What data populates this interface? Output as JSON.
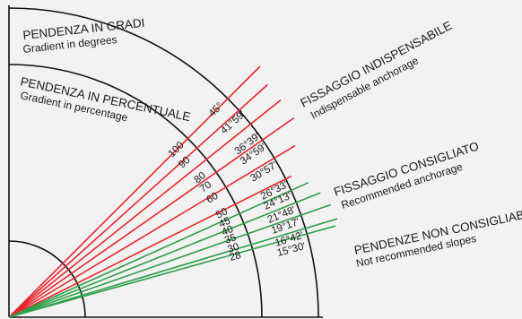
{
  "arcs": {
    "degrees_title": "PENDENZA IN GRADI",
    "degrees_subtitle": "Gradient in degrees",
    "percent_title": "PENDENZA IN PERCENTUALE",
    "percent_subtitle": "Gradient in percentage"
  },
  "zones": {
    "indispensable": {
      "title": "FISSAGGIO INDISPENSABILE",
      "subtitle": "Indispensable anchorage"
    },
    "recommended": {
      "title": "FISSAGGIO CONSIGLIATO",
      "subtitle": "Recommended anchorage"
    },
    "not_recommended": {
      "title": "PENDENZE NON CONSIGLIABILI",
      "subtitle": "Not recommended slopes"
    }
  },
  "colors": {
    "indispensable": "#e8262c",
    "recommended": "#2e9e48",
    "arc": "#111111",
    "background": "#f2f2f2"
  },
  "slopes": [
    {
      "percent": "100",
      "degrees": "45°",
      "group": "indispensable"
    },
    {
      "percent": "90",
      "degrees": "41°59'",
      "group": "indispensable"
    },
    {
      "percent": "80",
      "degrees": "36°39'",
      "group": "indispensable"
    },
    {
      "percent": "70",
      "degrees": "34°59'",
      "group": "indispensable"
    },
    {
      "percent": "60",
      "degrees": "30°57'",
      "group": "indispensable"
    },
    {
      "percent": "50",
      "degrees": "26°33'",
      "group": "indispensable"
    },
    {
      "percent": "45",
      "degrees": "24°13'",
      "group": "recommended"
    },
    {
      "percent": "40",
      "degrees": "21°48'",
      "group": "recommended"
    },
    {
      "percent": "35",
      "degrees": "19°17'",
      "group": "recommended"
    },
    {
      "percent": "30",
      "degrees": "16°42'",
      "group": "recommended"
    },
    {
      "percent": "28",
      "degrees": "15°30'",
      "group": "recommended"
    }
  ]
}
